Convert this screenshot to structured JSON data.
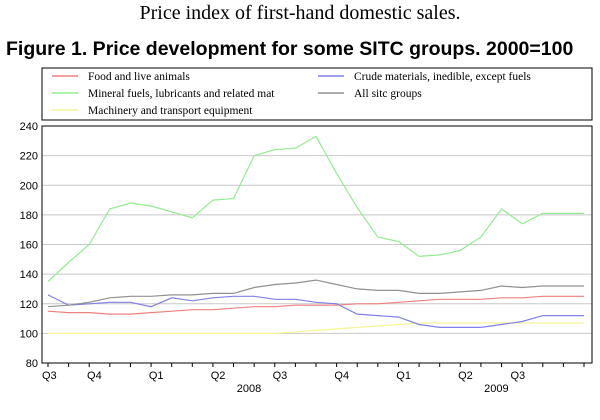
{
  "header": {
    "subtitle": "Price index of first-hand domestic sales.",
    "figure_title": "Figure 1. Price development for some SITC groups. 2000=100"
  },
  "chart_data": {
    "type": "line",
    "title": "Figure 1. Price development for some SITC groups. 2000=100",
    "xlabel": "",
    "ylabel": "",
    "ylim": [
      80,
      240
    ],
    "yticks": [
      80,
      100,
      120,
      140,
      160,
      180,
      200,
      220,
      240
    ],
    "grid": true,
    "legend_position": "top",
    "quarter_labels": [
      "Q3",
      "Q4",
      "Q1",
      "Q2",
      "Q3",
      "Q4",
      "Q1",
      "Q2",
      "Q3"
    ],
    "quarter_label_index": [
      0,
      4.5,
      10.5,
      16.5,
      22.5,
      28.5,
      34.5,
      40.5,
      46
    ],
    "year_labels": [
      {
        "label": "2008",
        "index": 19.5
      },
      {
        "label": "2009",
        "index": 43.5
      }
    ],
    "x": [
      "2007-07",
      "2007-08",
      "2007-09",
      "2007-10",
      "2007-11",
      "2007-12",
      "2008-01",
      "2008-02",
      "2008-03",
      "2008-04",
      "2008-05",
      "2008-06",
      "2008-07",
      "2008-08",
      "2008-09",
      "2008-10",
      "2008-11",
      "2008-12",
      "2009-01",
      "2009-02",
      "2009-03",
      "2009-04",
      "2009-05",
      "2009-06",
      "2009-07",
      "2009-08",
      "2009-09"
    ],
    "series": [
      {
        "name": "Food and live animals",
        "color": "#f08080",
        "values": [
          115,
          114,
          114,
          113,
          113,
          114,
          115,
          116,
          116,
          117,
          118,
          118,
          119,
          119,
          119,
          120,
          120,
          121,
          122,
          123,
          123,
          123,
          124,
          124,
          125,
          125,
          125
        ]
      },
      {
        "name": "Mineral fuels, lubricants and related mat",
        "color": "#90ee90",
        "values": [
          135,
          148,
          160,
          184,
          188,
          186,
          182,
          178,
          190,
          191,
          220,
          224,
          225,
          233,
          208,
          185,
          165,
          162,
          152,
          153,
          156,
          165,
          184,
          174,
          181,
          181,
          181
        ]
      },
      {
        "name": "Machinery and transport equipment",
        "color": "#f5f596",
        "values": [
          100,
          100,
          100,
          100,
          100,
          100,
          100,
          100,
          100,
          100,
          100,
          100,
          101,
          102,
          103,
          104,
          105,
          106,
          107,
          107,
          107,
          107,
          107,
          107,
          107,
          107,
          107
        ]
      },
      {
        "name": "Crude materials, inedible, except fuels",
        "color": "#8080e8",
        "values": [
          126,
          119,
          120,
          121,
          121,
          118,
          124,
          122,
          124,
          125,
          125,
          123,
          123,
          121,
          120,
          113,
          112,
          111,
          106,
          104,
          104,
          104,
          106,
          108,
          112,
          112,
          112
        ]
      },
      {
        "name": "All sitc groups",
        "color": "#909090",
        "values": [
          118,
          119,
          121,
          124,
          125,
          125,
          126,
          126,
          127,
          127,
          131,
          133,
          134,
          136,
          133,
          130,
          129,
          129,
          127,
          127,
          128,
          129,
          132,
          131,
          132,
          132,
          132
        ]
      }
    ]
  }
}
